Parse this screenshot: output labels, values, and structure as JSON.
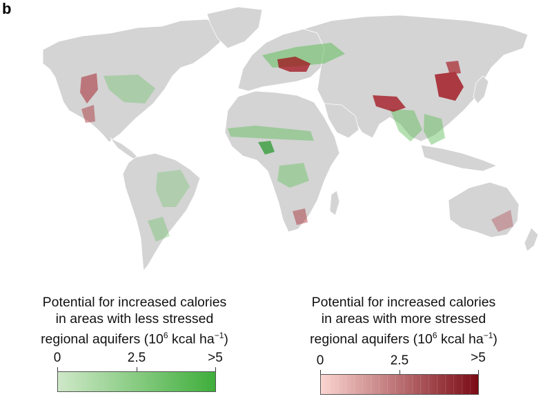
{
  "panel_label": "b",
  "colors": {
    "land": "#d4d4d4",
    "ocean": "#ffffff",
    "green_light": "#cfe8c8",
    "green_dark": "#3fae3b",
    "red_light": "#fad4d0",
    "red_dark": "#7a0b14"
  },
  "legend_green": {
    "title_line1": "Potential for increased calories",
    "title_line2": "in areas with less stressed",
    "title_line3_pre": "regional aquifers (10",
    "title_line3_sup1": "6",
    "title_line3_mid": " kcal ha",
    "title_line3_sup2": "−1",
    "title_line3_post": ")",
    "ticks": [
      "0",
      "2.5",
      ">5"
    ],
    "min": 0,
    "max": 5
  },
  "legend_red": {
    "title_line1": "Potential for increased calories",
    "title_line2": "in areas with more stressed",
    "title_line3_pre": "regional aquifers (10",
    "title_line3_sup1": "6",
    "title_line3_mid": " kcal ha",
    "title_line3_sup2": "−1",
    "title_line3_post": ")",
    "ticks": [
      "0",
      "2.5",
      ">5"
    ],
    "min": 0,
    "max": 5
  }
}
